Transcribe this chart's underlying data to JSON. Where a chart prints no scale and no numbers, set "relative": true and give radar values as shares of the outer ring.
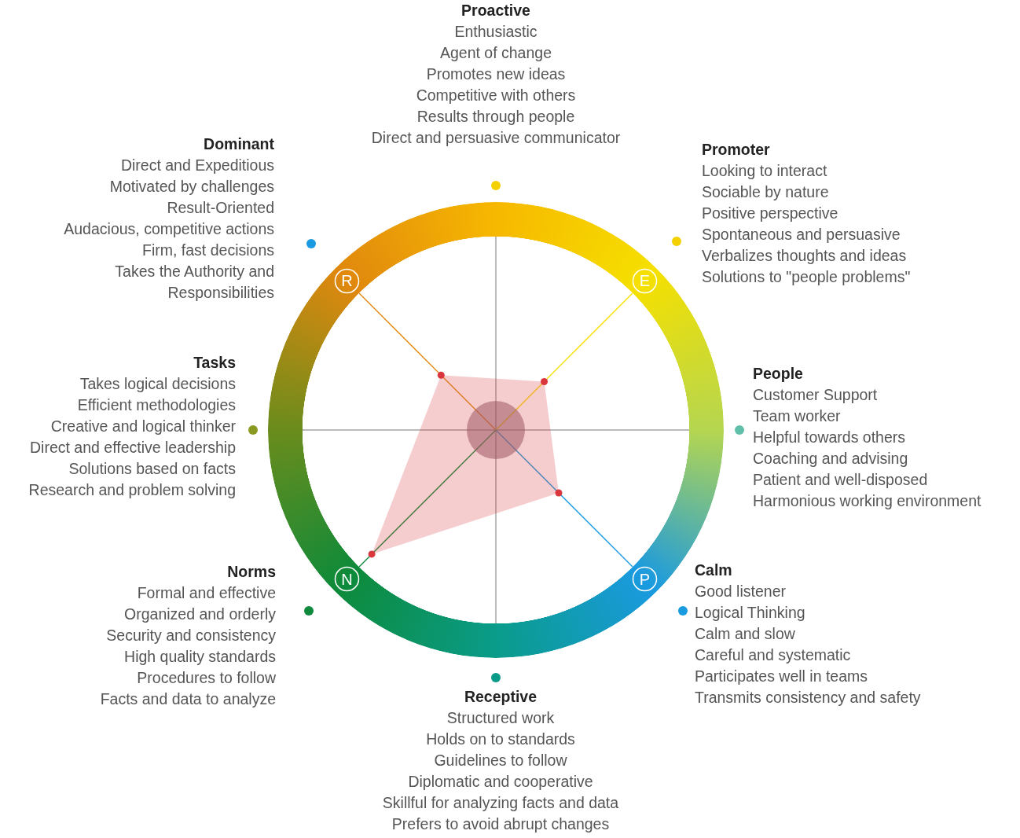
{
  "chart_data": {
    "type": "radar",
    "relative": true,
    "marker": "circle",
    "categories": [
      "E",
      "P",
      "N",
      "R"
    ],
    "series": [
      {
        "color": "#d9363e",
        "values": [
          0.3,
          0.39,
          0.77,
          0.34
        ]
      }
    ],
    "annotations": [
      "Proactive\nEnthusiastic\nAgent of change\nPromotes new ideas\nCompetitive with others\nResults through people\nDirect and persuasive communicator",
      "Promoter\nLooking to interact\nSociable by nature\nPositive perspective\nSpontaneous and persuasive\nVerbalizes thoughts and ideas\nSolutions to \"people problems\"",
      "People\nCustomer Support\nTeam worker\nHelpful towards others\nCoaching and advising\nPatient and well-disposed\nHarmonious working environment",
      "Calm\nGood listener\nLogical Thinking\nCalm and slow\nCareful and systematic\nParticipates well in teams\nTransmits consistency and safety",
      "Receptive\nStructured work\nHolds on to standards\nGuidelines to follow\nDiplomatic and cooperative\nSkillful for analyzing facts and data\nPrefers to avoid abrupt changes",
      "Norms\nFormal and effective\nOrganized and orderly\nSecurity and consistency\nHigh quality standards\nProcedures to follow\nFacts and data to analyze",
      "Tasks\nTakes logical decisions\nEfficient methodologies\nCreative and logical thinker\nDirect and effective leadership\nSolutions based on facts\nResearch and problem solving",
      "Dominant\nDirect and Expeditious\nMotivated by challenges\nResult-Oriented\nAudacious, competitive actions\nFirm, fast decisions\nTakes the Authority and\nResponsibilities"
    ]
  }
}
